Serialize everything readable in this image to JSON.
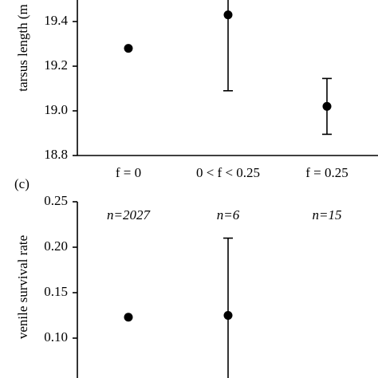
{
  "chart_data": [
    {
      "type": "errorbar",
      "ylabel": "tarsus length (m",
      "categories": [
        "f = 0",
        "0 < f < 0.25",
        "f = 0.25"
      ],
      "values": [
        19.28,
        19.43,
        19.02
      ],
      "errors": [
        null,
        0.34,
        0.125
      ],
      "ylim": [
        18.8,
        19.5
      ],
      "yticks": [
        {
          "value": 18.8,
          "label": "18.8"
        },
        {
          "value": 19.0,
          "label": "19.0"
        },
        {
          "value": 19.2,
          "label": "19.2"
        },
        {
          "value": 19.4,
          "label": "19.4"
        }
      ],
      "color": "#000000"
    },
    {
      "type": "errorbar",
      "panel_label": "(c)",
      "ylabel": "venile survival rate",
      "categories": [
        null,
        null,
        null
      ],
      "annotations": [
        "n=2027",
        "n=6",
        "n=15"
      ],
      "values": [
        0.123,
        0.125,
        null
      ],
      "errors": [
        null,
        0.085,
        null
      ],
      "ylim": [
        0.05,
        0.25
      ],
      "yticks": [
        {
          "value": 0.1,
          "label": "0.10"
        },
        {
          "value": 0.15,
          "label": "0.15"
        },
        {
          "value": 0.2,
          "label": "0.20"
        },
        {
          "value": 0.25,
          "label": "0.25"
        }
      ],
      "color": "#000000"
    }
  ]
}
